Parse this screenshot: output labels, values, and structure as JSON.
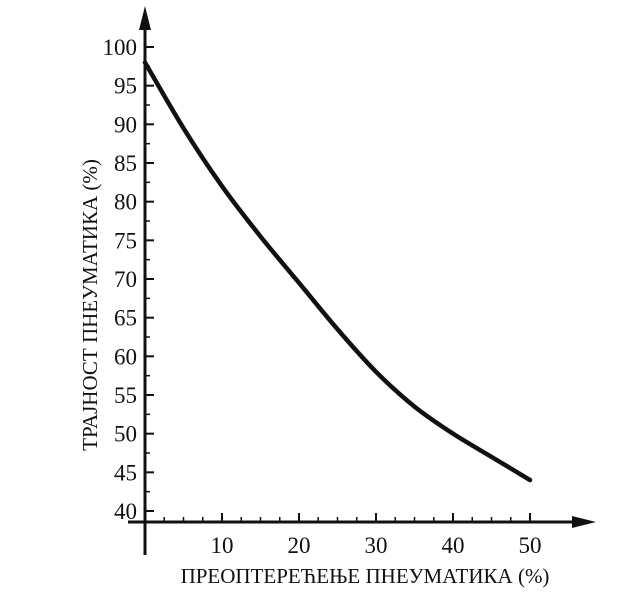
{
  "chart_data": {
    "type": "line",
    "xlabel": "ПРЕОПТЕРЕЋЕЊЕ ПНЕУМАТИКА (%)",
    "ylabel": "ТРАЈНОСТ ПНЕУМАТИКА (%)",
    "xlim": [
      0,
      50
    ],
    "ylim": [
      40,
      100
    ],
    "x_ticks": [
      10,
      20,
      30,
      40,
      50
    ],
    "y_ticks": [
      40,
      45,
      50,
      55,
      60,
      65,
      70,
      75,
      80,
      85,
      90,
      95,
      100
    ],
    "grid": false,
    "series": [
      {
        "x": [
          0,
          5,
          10,
          15,
          20,
          25,
          30,
          35,
          40,
          45,
          50
        ],
        "y": [
          98,
          89.5,
          82,
          75.5,
          69.5,
          63.5,
          58,
          53.5,
          50,
          47,
          44
        ]
      }
    ],
    "color": "#111111"
  }
}
